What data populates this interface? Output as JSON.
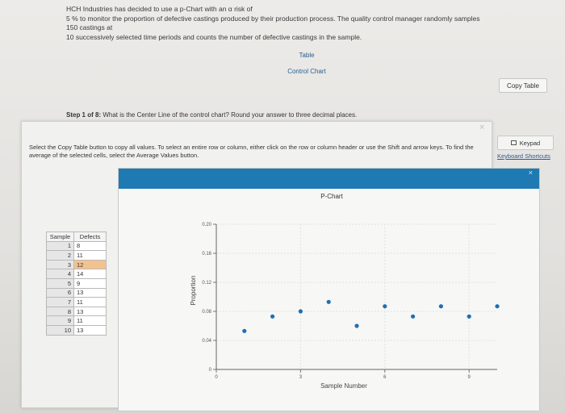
{
  "problem": {
    "line1": "HCH Industries has decided to use a p-Chart with an α risk of",
    "line2": "5 % to monitor the proportion of defective castings produced by their production process. The quality control manager randomly samples",
    "line3": "150 castings at",
    "line4": "10 successively selected time periods and counts the number of defective castings in the sample."
  },
  "links": {
    "table": "Table",
    "control_chart": "Control Chart"
  },
  "copy_table_label": "Copy Table",
  "step": {
    "prefix": "Step 1 of 8:",
    "question": "What is the Center Line of the control chart? Round your answer to three decimal places."
  },
  "modal": {
    "close_glyph": "×",
    "instructions": "Select the Copy Table button to copy all values. To select an entire row or column, either click on the row or column header or use the Shift and arrow keys. To find the average of the selected cells, select the Average Values button."
  },
  "side": {
    "keypad_label": "Keypad",
    "shortcuts_label": "Keyboard Shortcuts"
  },
  "chart_window": {
    "close_glyph": "×"
  },
  "table": {
    "headers": [
      "Sample",
      "Defects"
    ],
    "rows": [
      {
        "sample": "1",
        "defects": "8"
      },
      {
        "sample": "2",
        "defects": "11"
      },
      {
        "sample": "3",
        "defects": "12"
      },
      {
        "sample": "4",
        "defects": "14"
      },
      {
        "sample": "5",
        "defects": "9"
      },
      {
        "sample": "6",
        "defects": "13"
      },
      {
        "sample": "7",
        "defects": "11"
      },
      {
        "sample": "8",
        "defects": "13"
      },
      {
        "sample": "9",
        "defects": "11"
      },
      {
        "sample": "10",
        "defects": "13"
      }
    ],
    "highlighted_row": 3,
    "highlight_color": "#f4c28f"
  },
  "chart_data": {
    "type": "scatter",
    "title": "P-Chart",
    "xlabel": "Sample Number",
    "ylabel": "Proportion",
    "xlim": [
      0,
      10
    ],
    "ylim": [
      0,
      0.2
    ],
    "xticks": [
      0,
      3,
      6,
      9
    ],
    "xtick_labels": [
      "0",
      "3",
      "6",
      "9"
    ],
    "yticks": [
      0,
      0.04,
      0.08,
      0.12,
      0.16,
      0.2
    ],
    "ytick_labels": [
      "0",
      "0.04",
      "0.08",
      "0.12",
      "0.16",
      "0.20"
    ],
    "grid": true,
    "point_color": "#1f6fb3",
    "x": [
      1,
      2,
      3,
      4,
      5,
      6,
      7,
      8,
      9,
      10
    ],
    "y": [
      0.053,
      0.073,
      0.08,
      0.093,
      0.06,
      0.087,
      0.073,
      0.087,
      0.073,
      0.087
    ]
  }
}
